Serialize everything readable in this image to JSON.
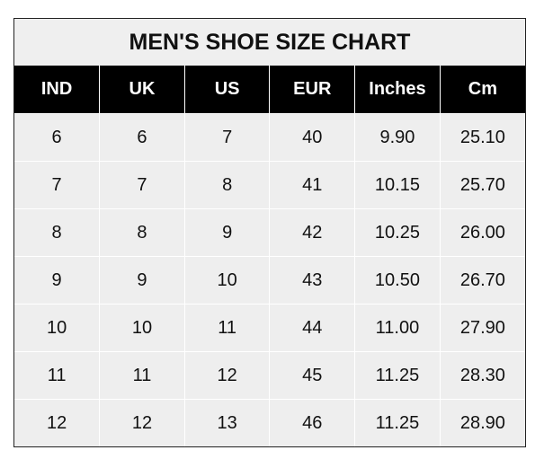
{
  "title": "MEN'S SHOE SIZE CHART",
  "headers": [
    "IND",
    "UK",
    "US",
    "EUR",
    "Inches",
    "Cm"
  ],
  "rows": [
    [
      "6",
      "6",
      "7",
      "40",
      "9.90",
      "25.10"
    ],
    [
      "7",
      "7",
      "8",
      "41",
      "10.15",
      "25.70"
    ],
    [
      "8",
      "8",
      "9",
      "42",
      "10.25",
      "26.00"
    ],
    [
      "9",
      "9",
      "10",
      "43",
      "10.50",
      "26.70"
    ],
    [
      "10",
      "10",
      "11",
      "44",
      "11.00",
      "27.90"
    ],
    [
      "11",
      "11",
      "12",
      "45",
      "11.25",
      "28.30"
    ],
    [
      "12",
      "12",
      "13",
      "46",
      "11.25",
      "28.90"
    ]
  ],
  "colors": {
    "header_bg": "#000000",
    "cell_bg": "#eeeeee",
    "grid": "#ffffff"
  }
}
